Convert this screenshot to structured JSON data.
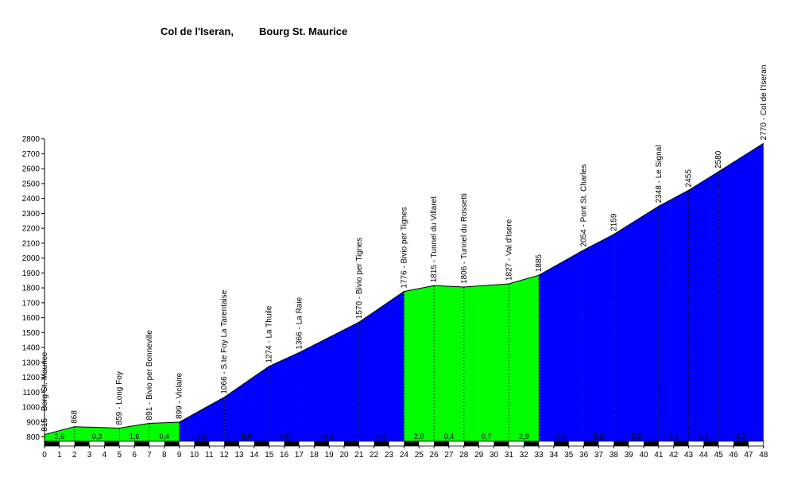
{
  "chart_data": {
    "type": "area",
    "title": "Col de l'Iseran,",
    "subtitle": "Bourg St. Maurice",
    "ylim": [
      800,
      2800
    ],
    "xlim": [
      0,
      48
    ],
    "y_ticks": [
      800,
      900,
      1000,
      1100,
      1200,
      1300,
      1400,
      1500,
      1600,
      1700,
      1800,
      1900,
      2000,
      2100,
      2200,
      2300,
      2400,
      2500,
      2600,
      2700,
      2800
    ],
    "x_ticks": [
      0,
      1,
      2,
      3,
      4,
      5,
      6,
      7,
      8,
      9,
      10,
      11,
      12,
      13,
      14,
      15,
      16,
      17,
      18,
      19,
      20,
      21,
      22,
      23,
      24,
      25,
      26,
      27,
      28,
      29,
      30,
      31,
      32,
      33,
      34,
      35,
      36,
      37,
      38,
      39,
      40,
      41,
      42,
      43,
      44,
      45,
      46,
      47,
      48
    ],
    "profile_points": [
      {
        "x": 0,
        "y": 815
      },
      {
        "x": 2,
        "y": 868
      },
      {
        "x": 5,
        "y": 859
      },
      {
        "x": 7,
        "y": 891
      },
      {
        "x": 9,
        "y": 899
      },
      {
        "x": 12,
        "y": 1066
      },
      {
        "x": 15,
        "y": 1274
      },
      {
        "x": 17,
        "y": 1366
      },
      {
        "x": 21,
        "y": 1570
      },
      {
        "x": 24,
        "y": 1776
      },
      {
        "x": 26,
        "y": 1815
      },
      {
        "x": 28,
        "y": 1806
      },
      {
        "x": 31,
        "y": 1827
      },
      {
        "x": 33,
        "y": 1885
      },
      {
        "x": 36,
        "y": 2054
      },
      {
        "x": 38,
        "y": 2159
      },
      {
        "x": 41,
        "y": 2348
      },
      {
        "x": 43,
        "y": 2455
      },
      {
        "x": 45,
        "y": 2580
      },
      {
        "x": 48,
        "y": 2770
      }
    ],
    "waypoint_labels": [
      {
        "x": 0,
        "text": "815 - Borg St. Maurice"
      },
      {
        "x": 2,
        "text": "868"
      },
      {
        "x": 5,
        "text": "859 - Long Foy"
      },
      {
        "x": 7,
        "text": "891 - Bivio per Bonneville"
      },
      {
        "x": 9,
        "text": "899 - Viclaire"
      },
      {
        "x": 12,
        "text": "1066 - S.te Foy La Tarentaise"
      },
      {
        "x": 15,
        "text": "1274 - La Thuile"
      },
      {
        "x": 17,
        "text": "1366 - La Raie"
      },
      {
        "x": 21,
        "text": "1570 - Bivio per Tignes"
      },
      {
        "x": 24,
        "text": "1776 - Bivio per Tignes"
      },
      {
        "x": 26,
        "text": "1815 - Tunnel du Villaret"
      },
      {
        "x": 28,
        "text": "1806 - Tunnel du Rossetti"
      },
      {
        "x": 31,
        "text": "1827 - Val d'Isere"
      },
      {
        "x": 33,
        "text": "1885"
      },
      {
        "x": 36,
        "text": "2054 - Pont St. Charles"
      },
      {
        "x": 38,
        "text": "2159"
      },
      {
        "x": 41,
        "text": "2348 - Le Signal"
      },
      {
        "x": 43,
        "text": "2455"
      },
      {
        "x": 45,
        "text": "2580"
      },
      {
        "x": 48,
        "text": "2770 - Col de l'Iseran"
      }
    ],
    "segments": [
      {
        "from": 0,
        "to": 2,
        "gradient": "2,6",
        "color": "#00ff00"
      },
      {
        "from": 2,
        "to": 5,
        "gradient": "0,3",
        "color": "#00ff00"
      },
      {
        "from": 5,
        "to": 7,
        "gradient": "1,6",
        "color": "#00ff00"
      },
      {
        "from": 7,
        "to": 9,
        "gradient": "0,4",
        "color": "#00ff00"
      },
      {
        "from": 9,
        "to": 12,
        "gradient": "5,6",
        "color": "#0000ff"
      },
      {
        "from": 12,
        "to": 15,
        "gradient": "6,9",
        "color": "#0000ff"
      },
      {
        "from": 15,
        "to": 17,
        "gradient": "4,6",
        "color": "#0000ff"
      },
      {
        "from": 17,
        "to": 21,
        "gradient": "5,1",
        "color": "#0000ff"
      },
      {
        "from": 21,
        "to": 24,
        "gradient": "6,9",
        "color": "#0000ff"
      },
      {
        "from": 24,
        "to": 26,
        "gradient": "2,0",
        "color": "#00ff00"
      },
      {
        "from": 26,
        "to": 28,
        "gradient": "0,4",
        "color": "#00ff00"
      },
      {
        "from": 28,
        "to": 31,
        "gradient": "0,7",
        "color": "#00ff00"
      },
      {
        "from": 31,
        "to": 33,
        "gradient": "2,9",
        "color": "#00ff00"
      },
      {
        "from": 33,
        "to": 36,
        "gradient": "5,6",
        "color": "#0000ff"
      },
      {
        "from": 36,
        "to": 38,
        "gradient": "5,3",
        "color": "#0000ff"
      },
      {
        "from": 38,
        "to": 41,
        "gradient": "6,3",
        "color": "#0000ff"
      },
      {
        "from": 41,
        "to": 43,
        "gradient": "5,3",
        "color": "#0000ff"
      },
      {
        "from": 43,
        "to": 45,
        "gradient": "6,3",
        "color": "#0000ff"
      },
      {
        "from": 45,
        "to": 48,
        "gradient": "6,3",
        "color": "#0000ff"
      }
    ],
    "grid": false,
    "legend": "none"
  }
}
